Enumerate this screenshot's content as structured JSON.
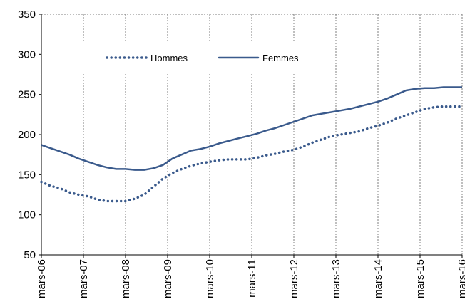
{
  "chart_data": {
    "type": "line",
    "title": "",
    "xlabel": "",
    "ylabel": "",
    "ylim": [
      50,
      350
    ],
    "yticks": [
      50,
      100,
      150,
      200,
      250,
      300,
      350
    ],
    "xticks": [
      "mars-06",
      "mars-07",
      "mars-08",
      "mars-09",
      "mars-10",
      "mars-11",
      "mars-12",
      "mars-13",
      "mars-14",
      "mars-15",
      "mars-16"
    ],
    "grid": "vertical",
    "legend_position": "top-left inside",
    "series": [
      {
        "name": "Hommes",
        "style": "dotted",
        "color": "#3A5A8C",
        "values": [
          141,
          136,
          133,
          128,
          125,
          123,
          119,
          117,
          117,
          117,
          120,
          125,
          135,
          145,
          152,
          157,
          161,
          164,
          166,
          168,
          169,
          169,
          169,
          171,
          174,
          176,
          179,
          181,
          185,
          190,
          194,
          198,
          200,
          202,
          204,
          208,
          211,
          215,
          220,
          224,
          228,
          232,
          234,
          235,
          235,
          235
        ]
      },
      {
        "name": "Femmes",
        "style": "solid",
        "color": "#3A5A8C",
        "values": [
          187,
          183,
          179,
          175,
          170,
          166,
          162,
          159,
          157,
          157,
          156,
          156,
          158,
          162,
          170,
          175,
          180,
          182,
          185,
          189,
          192,
          195,
          198,
          201,
          205,
          208,
          212,
          216,
          220,
          224,
          226,
          228,
          230,
          232,
          235,
          238,
          241,
          245,
          250,
          255,
          257,
          258,
          258,
          259,
          259,
          259
        ]
      }
    ]
  },
  "colors": {
    "series": "#3A5A8C",
    "grid": "#7F7F7F",
    "axis": "#000000"
  }
}
